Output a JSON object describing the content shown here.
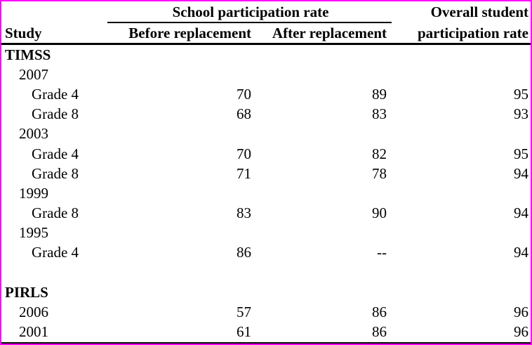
{
  "page": {
    "border_color": "#ff00ff",
    "background_color": "#ffffff",
    "text_color": "#000000"
  },
  "table": {
    "header": {
      "study_label": "Study",
      "group_label": "School participation rate",
      "col_before": "Before replacement",
      "col_after": "After replacement",
      "overall_line1": "Overall student",
      "overall_line2": "participation rate"
    },
    "rows": [
      {
        "label": "TIMSS",
        "level": 0,
        "bold": true,
        "before": "",
        "after": "",
        "overall": ""
      },
      {
        "label": "2007",
        "level": 1,
        "bold": false,
        "before": "",
        "after": "",
        "overall": ""
      },
      {
        "label": "Grade 4",
        "level": 2,
        "bold": false,
        "before": "70",
        "after": "89",
        "overall": "95"
      },
      {
        "label": "Grade 8",
        "level": 2,
        "bold": false,
        "before": "68",
        "after": "83",
        "overall": "93"
      },
      {
        "label": "2003",
        "level": 1,
        "bold": false,
        "before": "",
        "after": "",
        "overall": ""
      },
      {
        "label": "Grade 4",
        "level": 2,
        "bold": false,
        "before": "70",
        "after": "82",
        "overall": "95"
      },
      {
        "label": "Grade 8",
        "level": 2,
        "bold": false,
        "before": "71",
        "after": "78",
        "overall": "94"
      },
      {
        "label": "1999",
        "level": 1,
        "bold": false,
        "before": "",
        "after": "",
        "overall": ""
      },
      {
        "label": "Grade 8",
        "level": 2,
        "bold": false,
        "before": "83",
        "after": "90",
        "overall": "94"
      },
      {
        "label": "1995",
        "level": 1,
        "bold": false,
        "before": "",
        "after": "",
        "overall": ""
      },
      {
        "label": "Grade 4",
        "level": 2,
        "bold": false,
        "before": "86",
        "after": "--",
        "overall": "94"
      },
      {
        "label": "",
        "level": 0,
        "bold": false,
        "before": "",
        "after": "",
        "overall": ""
      },
      {
        "label": "PIRLS",
        "level": 0,
        "bold": true,
        "before": "",
        "after": "",
        "overall": ""
      },
      {
        "label": "2006",
        "level": 1,
        "bold": false,
        "before": "57",
        "after": "86",
        "overall": "96"
      },
      {
        "label": "2001",
        "level": 1,
        "bold": false,
        "before": "61",
        "after": "86",
        "overall": "96"
      }
    ]
  }
}
